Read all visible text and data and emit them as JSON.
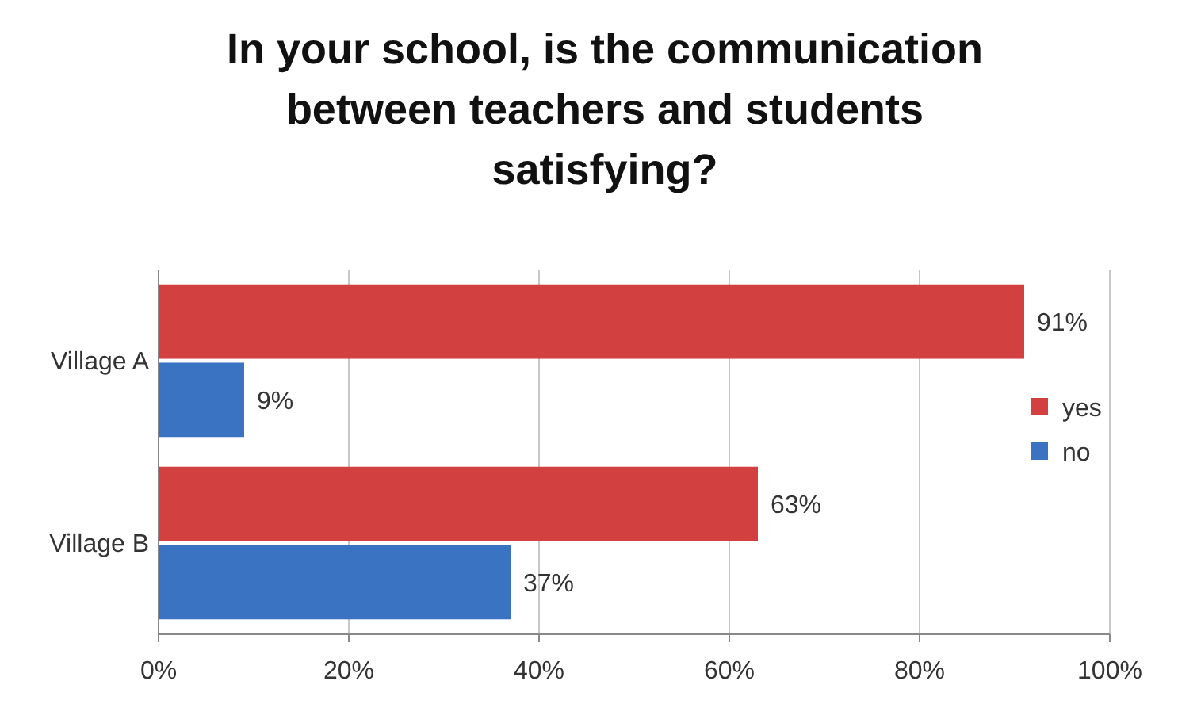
{
  "chart_data": {
    "type": "bar",
    "orientation": "horizontal",
    "title": "In your school, is the communication between teachers and students satisfying?",
    "categories": [
      "Village A",
      "Village B"
    ],
    "series": [
      {
        "name": "yes",
        "color": "#d24140",
        "values": [
          91,
          63
        ],
        "value_labels": [
          "91%",
          "63%"
        ]
      },
      {
        "name": "no",
        "color": "#3a73c2",
        "values": [
          9,
          37
        ],
        "value_labels": [
          "9%",
          "37%"
        ]
      }
    ],
    "xlim": [
      0,
      100
    ],
    "xticks": [
      {
        "value": 0,
        "label": "0%"
      },
      {
        "value": 20,
        "label": "20%"
      },
      {
        "value": 40,
        "label": "40%"
      },
      {
        "value": 60,
        "label": "60%"
      },
      {
        "value": 80,
        "label": "80%"
      },
      {
        "value": 100,
        "label": "100%"
      }
    ],
    "grid": "x",
    "legend": "right"
  }
}
